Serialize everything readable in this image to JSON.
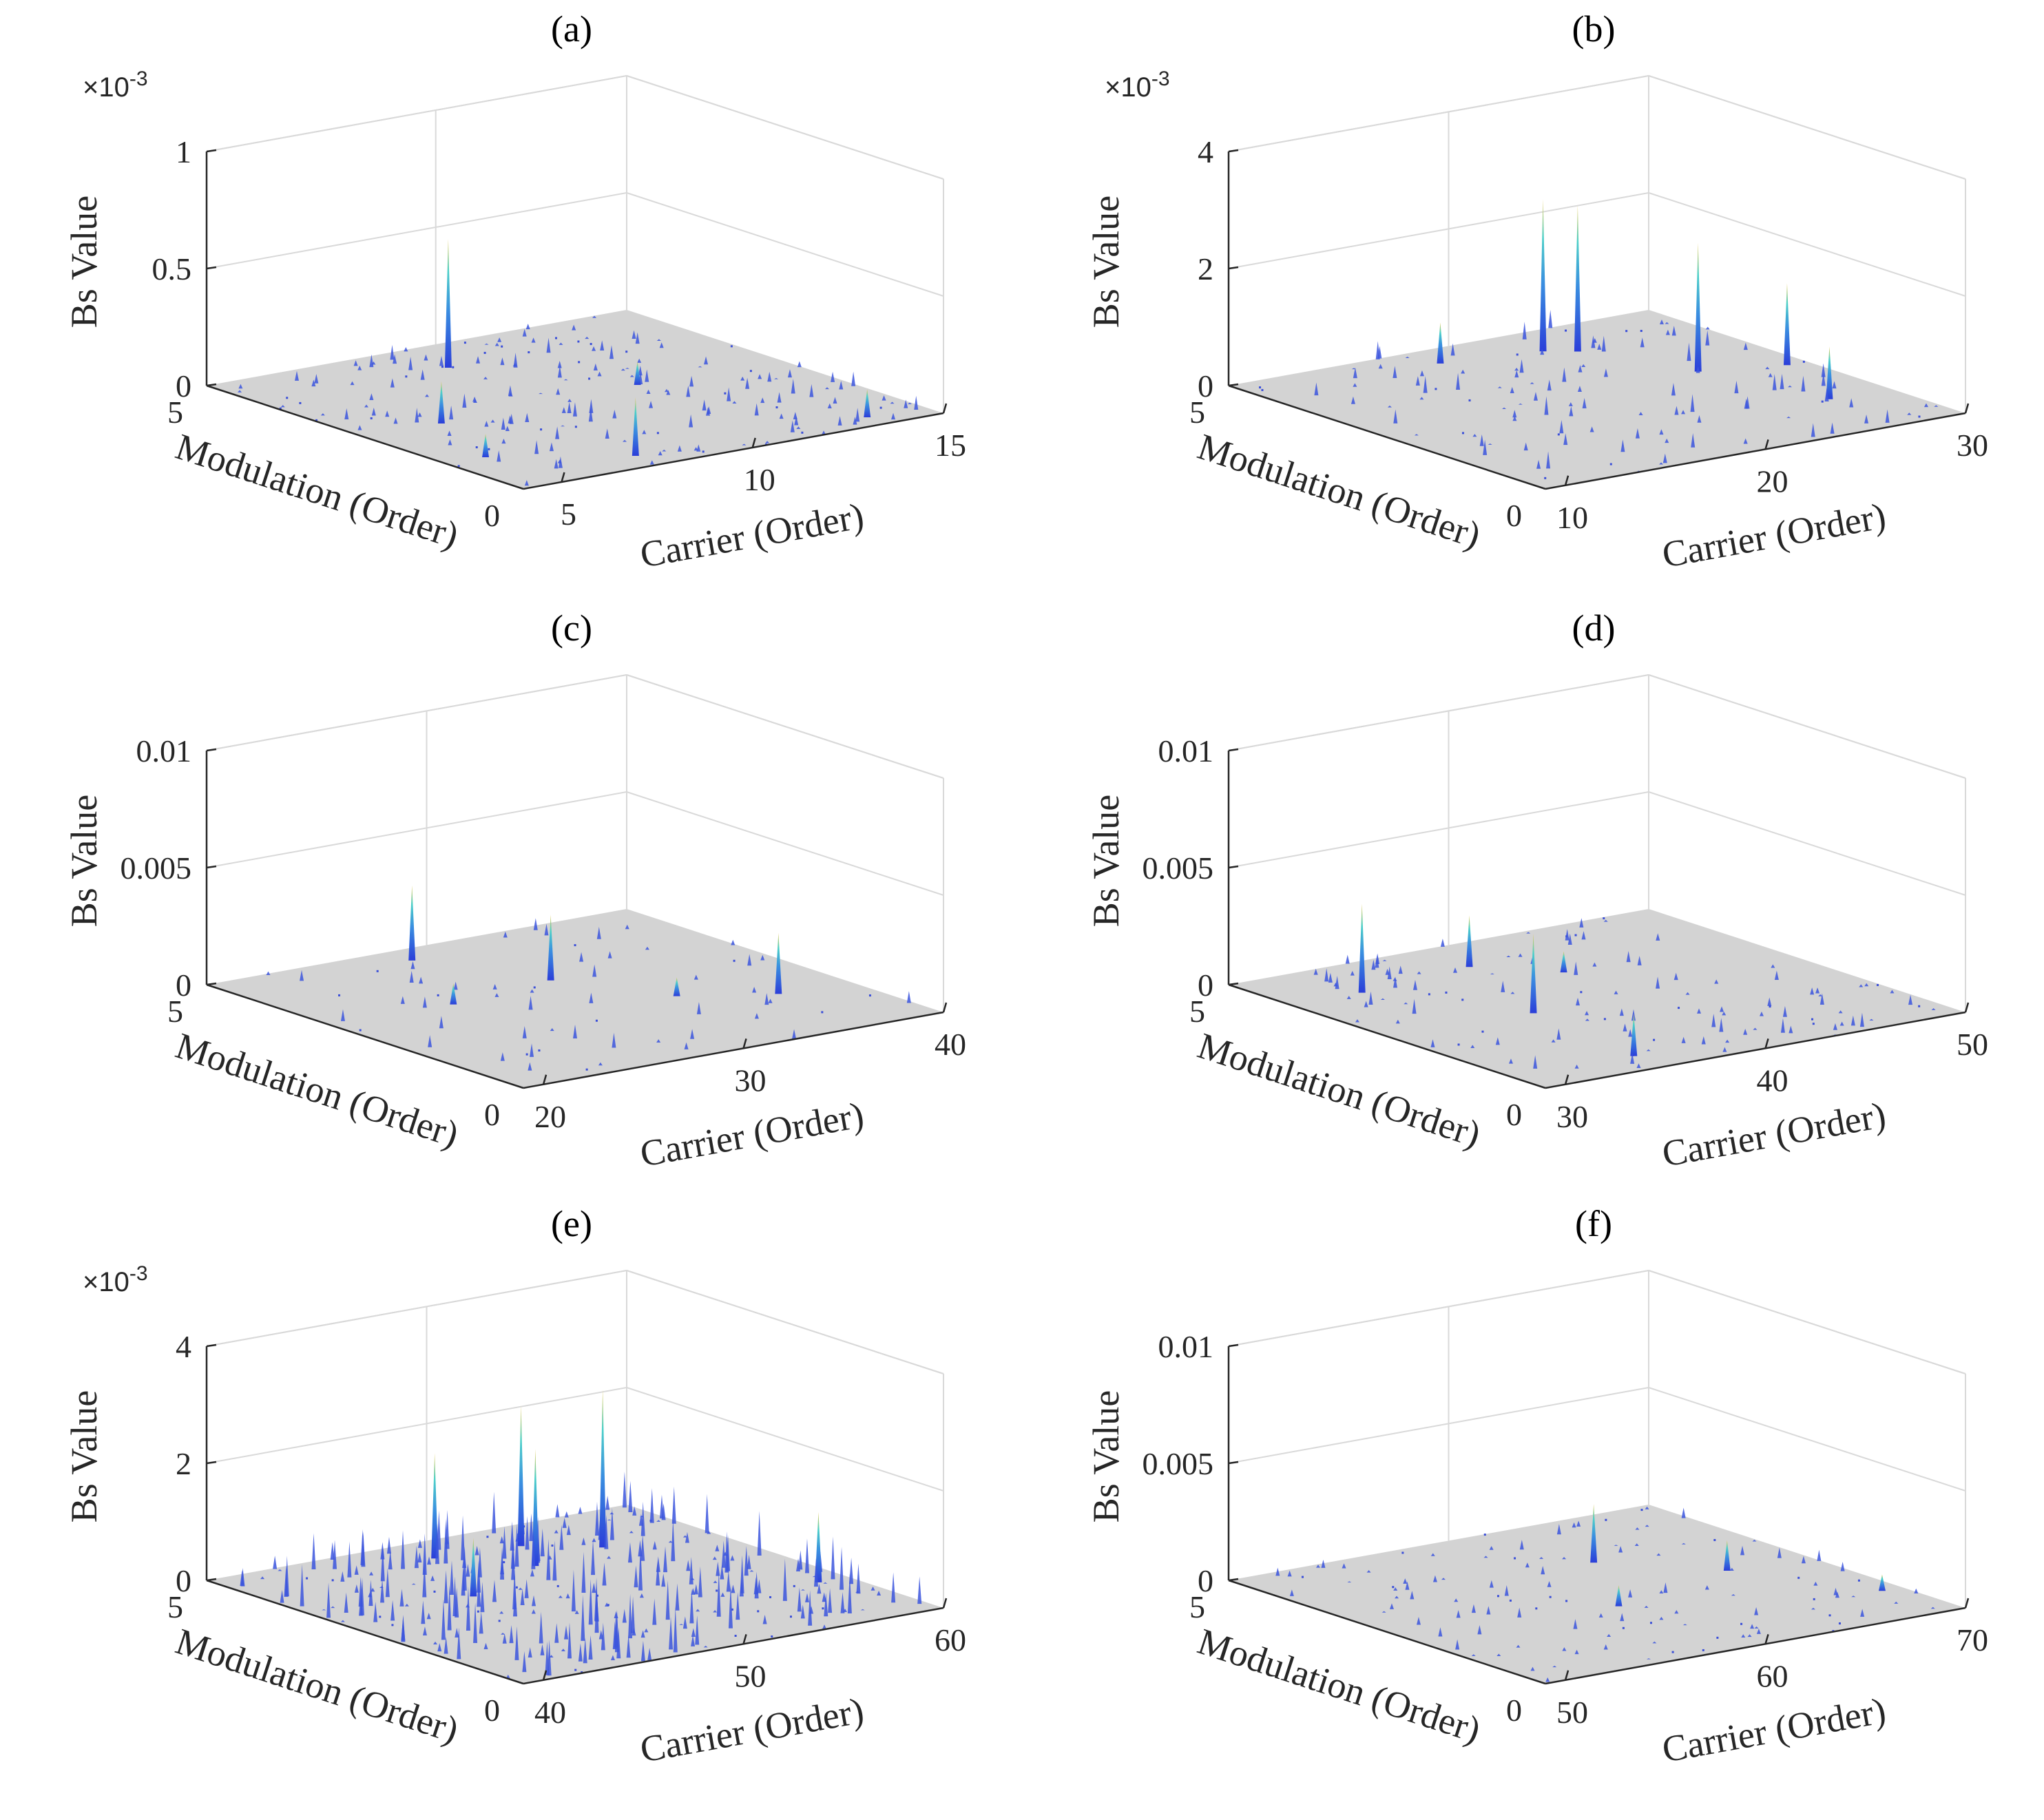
{
  "chart_data": [
    {
      "id": "a",
      "type": "surface3d",
      "title": "(a)",
      "xlabel": "Carrier (Order)",
      "ylabel": "Modulation (Order)",
      "zlabel": "Bs Value",
      "z_exponent": "×10-3",
      "z_scale": 0.001,
      "xlim": [
        4,
        15
      ],
      "ylim": [
        0,
        5
      ],
      "zlim": [
        0,
        0.001
      ],
      "x_ticks": [
        "5",
        "10",
        "15"
      ],
      "y_ticks": [
        "0",
        "5"
      ],
      "z_ticks": [
        "0",
        "0.5",
        "1"
      ],
      "z_tick_values": [
        0,
        0.0005,
        0.001
      ],
      "peaks": [
        {
          "x": 9.0,
          "y": 4.2,
          "z": 0.00055
        },
        {
          "x": 7.6,
          "y": 0.4,
          "z": 0.00025
        },
        {
          "x": 6.0,
          "y": 2.5,
          "z": 0.00018
        },
        {
          "x": 13.5,
          "y": 0.3,
          "z": 0.00012
        },
        {
          "x": 11.3,
          "y": 2.6,
          "z": 0.0001
        },
        {
          "x": 5.0,
          "y": 1.2,
          "z": 0.0001
        }
      ],
      "noise_level": 4e-05,
      "density": "high"
    },
    {
      "id": "b",
      "type": "surface3d",
      "title": "(b)",
      "xlabel": "Carrier (Order)",
      "ylabel": "Modulation (Order)",
      "zlabel": "Bs Value",
      "z_exponent": "×10-3",
      "z_scale": 0.001,
      "xlim": [
        9,
        30
      ],
      "ylim": [
        0,
        5
      ],
      "zlim": [
        0,
        0.004
      ],
      "x_ticks": [
        "10",
        "20",
        "30"
      ],
      "y_ticks": [
        "0",
        "5"
      ],
      "z_ticks": [
        "0",
        "2",
        "4"
      ],
      "z_tick_values": [
        0,
        0.002,
        0.004
      ],
      "peaks": [
        {
          "x": 22.5,
          "y": 4.3,
          "z": 0.0026
        },
        {
          "x": 23.6,
          "y": 4.1,
          "z": 0.0025
        },
        {
          "x": 25.5,
          "y": 2.8,
          "z": 0.0022
        },
        {
          "x": 29.0,
          "y": 2.5,
          "z": 0.0014
        },
        {
          "x": 27.0,
          "y": 1.2,
          "z": 0.0009
        },
        {
          "x": 18.0,
          "y": 4.5,
          "z": 0.0007
        }
      ],
      "noise_level": 0.0002,
      "density": "medium"
    },
    {
      "id": "c",
      "type": "surface3d",
      "title": "(c)",
      "xlabel": "Carrier (Order)",
      "ylabel": "Modulation (Order)",
      "zlabel": "Bs Value",
      "z_exponent": "",
      "z_scale": 1,
      "xlim": [
        19,
        40
      ],
      "ylim": [
        0,
        5
      ],
      "zlim": [
        0,
        0.01
      ],
      "x_ticks": [
        "20",
        "30",
        "40"
      ],
      "y_ticks": [
        "0",
        "5"
      ],
      "z_ticks": [
        "0",
        "0.005",
        "0.01"
      ],
      "z_tick_values": [
        0,
        0.005,
        0.01
      ],
      "peaks": [
        {
          "x": 28.0,
          "y": 4.6,
          "z": 0.0032
        },
        {
          "x": 30.5,
          "y": 3.2,
          "z": 0.0028
        },
        {
          "x": 36.5,
          "y": 1.5,
          "z": 0.0026
        },
        {
          "x": 25.0,
          "y": 3.0,
          "z": 0.0009
        },
        {
          "x": 33.0,
          "y": 2.0,
          "z": 0.0008
        }
      ],
      "noise_level": 0.0004,
      "density": "low"
    },
    {
      "id": "d",
      "type": "surface3d",
      "title": "(d)",
      "xlabel": "Carrier (Order)",
      "ylabel": "Modulation (Order)",
      "zlabel": "Bs Value",
      "z_exponent": "",
      "z_scale": 1,
      "xlim": [
        29,
        50
      ],
      "ylim": [
        0,
        5
      ],
      "zlim": [
        0,
        0.01
      ],
      "x_ticks": [
        "30",
        "40",
        "50"
      ],
      "y_ticks": [
        "0",
        "5"
      ],
      "z_ticks": [
        "0",
        "0.005",
        "0.01"
      ],
      "z_tick_values": [
        0,
        0.005,
        0.01
      ],
      "peaks": [
        {
          "x": 32.5,
          "y": 4.0,
          "z": 0.0038
        },
        {
          "x": 36.0,
          "y": 2.4,
          "z": 0.0034
        },
        {
          "x": 38.5,
          "y": 4.2,
          "z": 0.0022
        },
        {
          "x": 35.0,
          "y": 0.5,
          "z": 0.0018
        },
        {
          "x": 41.0,
          "y": 3.5,
          "z": 0.0009
        }
      ],
      "noise_level": 0.0004,
      "density": "medium"
    },
    {
      "id": "e",
      "type": "surface3d",
      "title": "(e)",
      "xlabel": "Carrier (Order)",
      "ylabel": "Modulation (Order)",
      "zlabel": "Bs Value",
      "z_exponent": "×10-3",
      "z_scale": 0.001,
      "xlim": [
        39,
        60
      ],
      "ylim": [
        0,
        5
      ],
      "zlim": [
        0,
        0.004
      ],
      "x_ticks": [
        "40",
        "50",
        "60"
      ],
      "y_ticks": [
        "0",
        "5"
      ],
      "z_ticks": [
        "0",
        "2",
        "4"
      ],
      "z_tick_values": [
        0,
        0.002,
        0.004
      ],
      "peaks": [
        {
          "x": 55.0,
          "y": 3.8,
          "z": 0.0027
        },
        {
          "x": 52.5,
          "y": 4.3,
          "z": 0.0024
        },
        {
          "x": 51.0,
          "y": 3.6,
          "z": 0.002
        },
        {
          "x": 48.5,
          "y": 4.4,
          "z": 0.0018
        },
        {
          "x": 58.5,
          "y": 1.5,
          "z": 0.0012
        },
        {
          "x": 46.0,
          "y": 3.0,
          "z": 0.001
        }
      ],
      "noise_level": 0.0005,
      "density": "very-high"
    },
    {
      "id": "f",
      "type": "surface3d",
      "title": "(f)",
      "xlabel": "Carrier (Order)",
      "ylabel": "Modulation (Order)",
      "zlabel": "Bs Value",
      "z_exponent": "",
      "z_scale": 1,
      "xlim": [
        49,
        70
      ],
      "ylim": [
        0,
        5
      ],
      "zlim": [
        0,
        0.01
      ],
      "x_ticks": [
        "50",
        "60",
        "70"
      ],
      "y_ticks": [
        "0",
        "5"
      ],
      "z_ticks": [
        "0",
        "0.005",
        "0.01"
      ],
      "z_tick_values": [
        0,
        0.005,
        0.01
      ],
      "peaks": [
        {
          "x": 62.5,
          "y": 3.5,
          "z": 0.0025
        },
        {
          "x": 66.0,
          "y": 2.5,
          "z": 0.0013
        },
        {
          "x": 59.0,
          "y": 2.0,
          "z": 0.0009
        },
        {
          "x": 69.0,
          "y": 1.0,
          "z": 0.0007
        }
      ],
      "noise_level": 0.0003,
      "density": "medium"
    }
  ]
}
